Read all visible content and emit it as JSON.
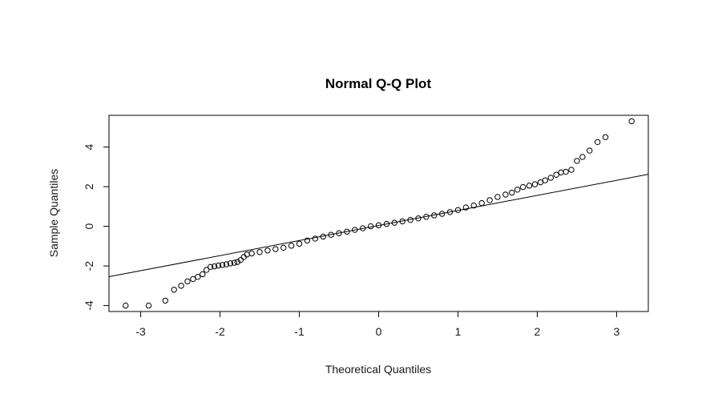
{
  "chart_data": {
    "type": "scatter",
    "title": "Normal Q-Q Plot",
    "xlabel": "Theoretical Quantiles",
    "ylabel": "Sample Quantiles",
    "xlim": [
      -3.4,
      3.4
    ],
    "ylim": [
      -4.3,
      5.6
    ],
    "x_ticks": [
      -3,
      -2,
      -1,
      0,
      1,
      2,
      3
    ],
    "y_ticks": [
      -4,
      -2,
      0,
      2,
      4
    ],
    "x_tick_labels": [
      "-3",
      "-2",
      "-1",
      "0",
      "1",
      "2",
      "3"
    ],
    "y_tick_labels": [
      "-4",
      "-2",
      "0",
      "2",
      "4"
    ],
    "grid": false,
    "legend": "none",
    "reference_line": {
      "slope": 0.76,
      "intercept": 0.04
    },
    "point_color": "#000000",
    "line_color": "#000000",
    "points": [
      [
        -3.19,
        -4.0
      ],
      [
        -2.9,
        -4.0
      ],
      [
        -2.69,
        -3.75
      ],
      [
        -2.58,
        -3.2
      ],
      [
        -2.49,
        -3.0
      ],
      [
        -2.41,
        -2.78
      ],
      [
        -2.34,
        -2.66
      ],
      [
        -2.28,
        -2.55
      ],
      [
        -2.22,
        -2.42
      ],
      [
        -2.17,
        -2.2
      ],
      [
        -2.12,
        -2.05
      ],
      [
        -2.07,
        -2.02
      ],
      [
        -2.02,
        -1.98
      ],
      [
        -1.97,
        -1.95
      ],
      [
        -1.92,
        -1.92
      ],
      [
        -1.87,
        -1.87
      ],
      [
        -1.82,
        -1.84
      ],
      [
        -1.78,
        -1.8
      ],
      [
        -1.74,
        -1.7
      ],
      [
        -1.7,
        -1.55
      ],
      [
        -1.66,
        -1.42
      ],
      [
        -1.6,
        -1.37
      ],
      [
        -1.5,
        -1.3
      ],
      [
        -1.4,
        -1.22
      ],
      [
        -1.3,
        -1.15
      ],
      [
        -1.2,
        -1.08
      ],
      [
        -1.1,
        -0.98
      ],
      [
        -1.0,
        -0.88
      ],
      [
        -0.9,
        -0.72
      ],
      [
        -0.8,
        -0.62
      ],
      [
        -0.7,
        -0.52
      ],
      [
        -0.6,
        -0.43
      ],
      [
        -0.5,
        -0.35
      ],
      [
        -0.4,
        -0.27
      ],
      [
        -0.3,
        -0.18
      ],
      [
        -0.2,
        -0.1
      ],
      [
        -0.1,
        0.0
      ],
      [
        0.0,
        0.05
      ],
      [
        0.1,
        0.12
      ],
      [
        0.2,
        0.18
      ],
      [
        0.3,
        0.25
      ],
      [
        0.4,
        0.32
      ],
      [
        0.5,
        0.4
      ],
      [
        0.6,
        0.48
      ],
      [
        0.7,
        0.55
      ],
      [
        0.8,
        0.63
      ],
      [
        0.9,
        0.72
      ],
      [
        1.0,
        0.82
      ],
      [
        1.1,
        0.95
      ],
      [
        1.2,
        1.05
      ],
      [
        1.3,
        1.17
      ],
      [
        1.4,
        1.32
      ],
      [
        1.5,
        1.48
      ],
      [
        1.6,
        1.6
      ],
      [
        1.68,
        1.7
      ],
      [
        1.75,
        1.85
      ],
      [
        1.82,
        1.98
      ],
      [
        1.9,
        2.05
      ],
      [
        1.97,
        2.12
      ],
      [
        2.04,
        2.22
      ],
      [
        2.1,
        2.32
      ],
      [
        2.17,
        2.45
      ],
      [
        2.24,
        2.6
      ],
      [
        2.3,
        2.72
      ],
      [
        2.36,
        2.75
      ],
      [
        2.43,
        2.85
      ],
      [
        2.5,
        3.3
      ],
      [
        2.57,
        3.5
      ],
      [
        2.66,
        3.82
      ],
      [
        2.76,
        4.25
      ],
      [
        2.86,
        4.5
      ],
      [
        3.19,
        5.3
      ]
    ]
  }
}
